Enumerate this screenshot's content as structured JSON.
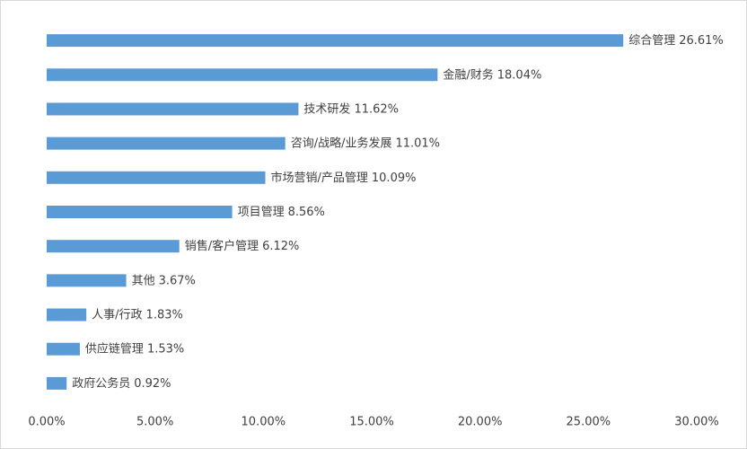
{
  "chart_data": {
    "type": "bar",
    "orientation": "horizontal",
    "categories": [
      "综合管理",
      "金融/财务",
      "技术研发",
      "咨询/战略/业务发展",
      "市场营销/产品管理",
      "项目管理",
      "销售/客户管理",
      "其他",
      "人事/行政",
      "供应链管理",
      "政府公务员"
    ],
    "values": [
      26.61,
      18.04,
      11.62,
      11.01,
      10.09,
      8.56,
      6.12,
      3.67,
      1.83,
      1.53,
      0.92
    ],
    "value_labels": [
      "26.61%",
      "18.04%",
      "11.62%",
      "11.01%",
      "10.09%",
      "8.56%",
      "6.12%",
      "3.67%",
      "1.83%",
      "1.53%",
      "0.92%"
    ],
    "color": "#5b9bd5",
    "xlim": [
      0,
      30
    ],
    "xticks": [
      {
        "value": 0,
        "label": "0.00%"
      },
      {
        "value": 5,
        "label": "5.00%"
      },
      {
        "value": 10,
        "label": "10.00%"
      },
      {
        "value": 15,
        "label": "15.00%"
      },
      {
        "value": 20,
        "label": "20.00%"
      },
      {
        "value": 25,
        "label": "25.00%"
      },
      {
        "value": 30,
        "label": "30.00%"
      }
    ],
    "grid": false
  }
}
